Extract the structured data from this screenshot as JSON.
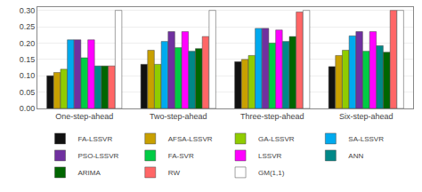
{
  "chart_data": {
    "type": "bar",
    "categories": [
      "One-step-ahead",
      "Two-step-ahead",
      "Three-step-ahead",
      "Six-step-ahead"
    ],
    "series": [
      {
        "name": "FA-LSSVR",
        "color": "#111111",
        "values": [
          0.1,
          0.135,
          0.143,
          0.128
        ]
      },
      {
        "name": "AFSA-LSSVR",
        "color": "#c8a000",
        "values": [
          0.11,
          0.178,
          0.15,
          0.162
        ]
      },
      {
        "name": "GA-LSSVR",
        "color": "#90cc00",
        "values": [
          0.12,
          0.135,
          0.162,
          0.178
        ]
      },
      {
        "name": "SA-LSSVR",
        "color": "#00aaee",
        "values": [
          0.21,
          0.205,
          0.245,
          0.222
        ]
      },
      {
        "name": "PSO-LSSVR",
        "color": "#7030a0",
        "values": [
          0.21,
          0.235,
          0.245,
          0.235
        ]
      },
      {
        "name": "FA-SVR",
        "color": "#00cc44",
        "values": [
          0.155,
          0.186,
          0.2,
          0.175
        ]
      },
      {
        "name": "LSSVR",
        "color": "#ff00ff",
        "values": [
          0.21,
          0.235,
          0.24,
          0.235
        ]
      },
      {
        "name": "ANN",
        "color": "#008888",
        "values": [
          0.13,
          0.175,
          0.205,
          0.192
        ]
      },
      {
        "name": "ARIMA",
        "color": "#006600",
        "values": [
          0.13,
          0.183,
          0.22,
          0.172
        ]
      },
      {
        "name": "RW",
        "color": "#ff6666",
        "values": [
          0.13,
          0.22,
          0.295,
          0.3
        ]
      },
      {
        "name": "GM(1,1)",
        "color": "#ffffff",
        "values": [
          0.3,
          0.3,
          0.3,
          0.3
        ]
      }
    ],
    "ylim": [
      0,
      0.31
    ],
    "yticks": [
      {
        "value": 0,
        "label": "0.00"
      },
      {
        "value": 0.05,
        "label": "0.05"
      },
      {
        "value": 0.1,
        "label": "0.10"
      },
      {
        "value": 0.15,
        "label": "0.15"
      },
      {
        "value": 0.2,
        "label": "0.20"
      },
      {
        "value": 0.25,
        "label": "0.25"
      },
      {
        "value": 0.3,
        "label": "0.30"
      }
    ],
    "grid": true,
    "legend": "bottom"
  }
}
